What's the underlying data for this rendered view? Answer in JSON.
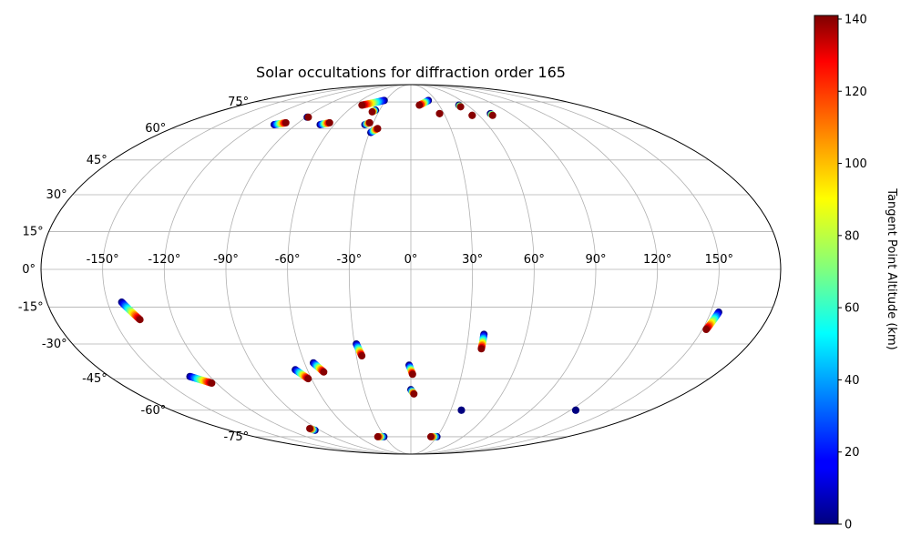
{
  "chart_data": {
    "type": "scatter",
    "projection": "mollweide",
    "title": "Solar occultations for diffraction order 165",
    "grid": true,
    "lon_ticks": [
      -150,
      -120,
      -90,
      -60,
      -30,
      0,
      30,
      60,
      90,
      120,
      150
    ],
    "lon_tick_labels": [
      "-150°",
      "-120°",
      "-90°",
      "-60°",
      "-30°",
      "0°",
      "30°",
      "60°",
      "90°",
      "120°",
      "150°"
    ],
    "lat_ticks": [
      75,
      60,
      45,
      30,
      15,
      0,
      -15,
      -30,
      -45,
      -60,
      -75
    ],
    "lat_tick_labels": [
      "75°",
      "60°",
      "45°",
      "30°",
      "15°",
      "0°",
      "-15°",
      "-30°",
      "-45°",
      "-60°",
      "-75°"
    ],
    "colorbar": {
      "label": "Tangent Point Altitude (km)",
      "min": 0,
      "max": 141,
      "colormap": "jet",
      "ticks": [
        0,
        20,
        40,
        60,
        80,
        100,
        120,
        140
      ],
      "tick_labels": [
        "0",
        "20",
        "40",
        "60",
        "80",
        "100",
        "120",
        "140"
      ]
    },
    "tracks": [
      {
        "lon_start": -52,
        "lat_start": 73,
        "lon_end": -32,
        "lat_end": 76,
        "alt_start": 140,
        "alt_end": 0
      },
      {
        "lon_start": 9,
        "lat_start": 73,
        "lon_end": 21,
        "lat_end": 76,
        "alt_start": 140,
        "alt_end": 0
      },
      {
        "lon_start": -107,
        "lat_start": 62,
        "lon_end": -100,
        "lat_end": 63,
        "alt_start": 0,
        "alt_end": 140
      },
      {
        "lon_start": -89,
        "lat_start": 66,
        "lon_end": -88,
        "lat_end": 66,
        "alt_start": 0,
        "alt_end": 140
      },
      {
        "lon_start": -71,
        "lat_start": 62,
        "lon_end": -65,
        "lat_end": 63,
        "alt_start": 0,
        "alt_end": 140
      },
      {
        "lon_start": -36,
        "lat_start": 62,
        "lon_end": -33,
        "lat_end": 63,
        "alt_start": 0,
        "alt_end": 140
      },
      {
        "lon_start": -29,
        "lat_start": 58,
        "lon_end": -25,
        "lat_end": 60,
        "alt_start": 0,
        "alt_end": 140
      },
      {
        "lon_start": -36,
        "lat_start": 69,
        "lon_end": -34,
        "lat_end": 70,
        "alt_start": 140,
        "alt_end": 0
      },
      {
        "lon_start": 51,
        "lat_start": 72,
        "lon_end": 51,
        "lat_end": 73,
        "alt_start": 140,
        "alt_end": 0
      },
      {
        "lon_start": 26,
        "lat_start": 68,
        "lon_end": 26,
        "lat_end": 68,
        "alt_start": 140,
        "alt_end": 140
      },
      {
        "lon_start": 54,
        "lat_start": 67,
        "lon_end": 54,
        "lat_end": 67,
        "alt_start": 140,
        "alt_end": 140
      },
      {
        "lon_start": 72,
        "lat_start": 67,
        "lon_end": 72,
        "lat_end": 68,
        "alt_start": 140,
        "alt_end": 0
      },
      {
        "lon_start": -143,
        "lat_start": -13,
        "lon_end": -137,
        "lat_end": -20,
        "alt_start": 0,
        "alt_end": 140
      },
      {
        "lon_start": -132,
        "lat_start": -44,
        "lon_end": -123,
        "lat_end": -47,
        "alt_start": 0,
        "alt_end": 140
      },
      {
        "lon_start": -67,
        "lat_start": -41,
        "lon_end": -62,
        "lat_end": -45,
        "alt_start": 0,
        "alt_end": 140
      },
      {
        "lon_start": -55,
        "lat_start": -38,
        "lon_end": -51,
        "lat_end": -42,
        "alt_start": 0,
        "alt_end": 140
      },
      {
        "lon_start": -29,
        "lat_start": -30,
        "lon_end": -27,
        "lat_end": -35,
        "alt_start": 0,
        "alt_end": 140
      },
      {
        "lon_start": -1,
        "lat_start": -39,
        "lon_end": 1,
        "lat_end": -43,
        "alt_start": 0,
        "alt_end": 140
      },
      {
        "lon_start": 0,
        "lat_start": -50,
        "lon_end": 2,
        "lat_end": -52,
        "alt_start": 0,
        "alt_end": 140
      },
      {
        "lon_start": 38,
        "lat_start": -26,
        "lon_end": 38,
        "lat_end": -32,
        "alt_start": 0,
        "alt_end": 140
      },
      {
        "lon_start": 154,
        "lat_start": -17,
        "lon_end": 152,
        "lat_end": -24,
        "alt_start": 0,
        "alt_end": 140
      },
      {
        "lon_start": 38,
        "lat_start": -60,
        "lon_end": 38,
        "lat_end": -60,
        "alt_start": 0,
        "alt_end": 0
      },
      {
        "lon_start": 124,
        "lat_start": -60,
        "lon_end": 124,
        "lat_end": -60,
        "alt_start": 0,
        "alt_end": 0
      },
      {
        "lon_start": -97,
        "lat_start": -70,
        "lon_end": -95,
        "lat_end": -71,
        "alt_start": 140,
        "alt_end": 0
      },
      {
        "lon_start": -38,
        "lat_start": -75,
        "lon_end": -31,
        "lat_end": -75,
        "alt_start": 140,
        "alt_end": 0
      },
      {
        "lon_start": 23,
        "lat_start": -75,
        "lon_end": 30,
        "lat_end": -75,
        "alt_start": 140,
        "alt_end": 0
      }
    ]
  }
}
